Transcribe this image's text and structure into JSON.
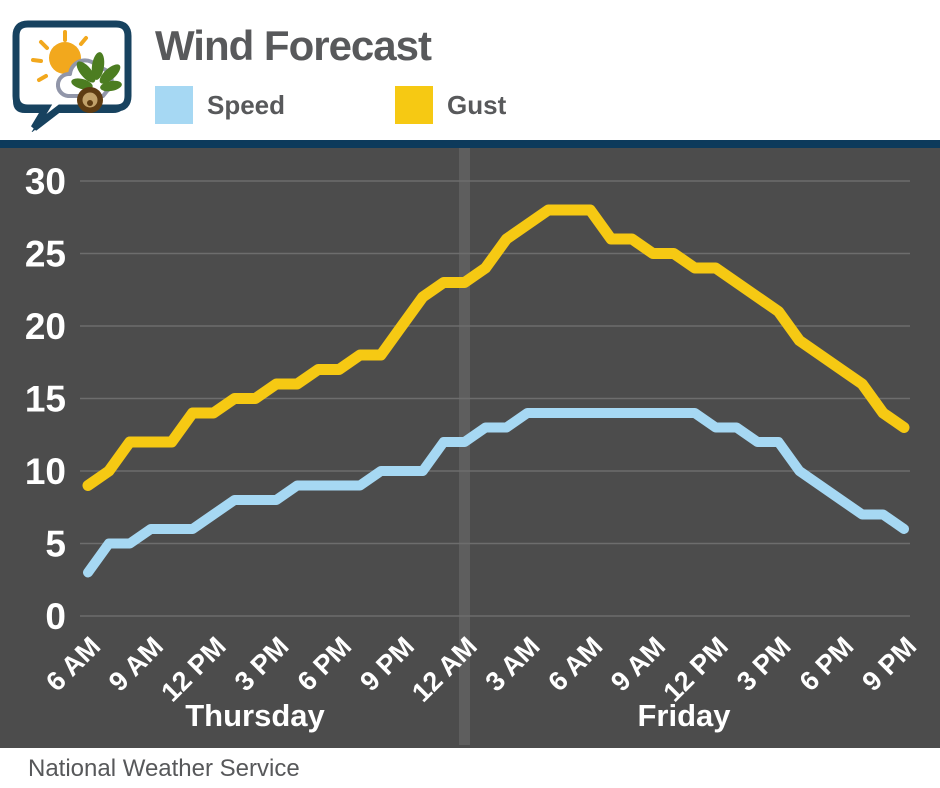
{
  "header": {
    "title": "Wind Forecast",
    "legend": [
      {
        "label": "Speed",
        "color": "#a6d8f3"
      },
      {
        "label": "Gust",
        "color": "#f6c913"
      }
    ]
  },
  "footer": {
    "source": "National Weather Service"
  },
  "colors": {
    "navy_bar": "#0d3a5b",
    "chart_background": "#4c4c4c",
    "gridline": "#6d6d6d",
    "midnight_divider": "#5e5e5e",
    "axis_text": "#ffffff",
    "title_text": "#58595b"
  },
  "chart_data": {
    "type": "line",
    "title": "Wind Forecast",
    "ylabel": "",
    "xlabel": "",
    "ylim": [
      0,
      30
    ],
    "y_ticks": [
      0,
      5,
      10,
      15,
      20,
      25,
      30
    ],
    "x_tick_labels": [
      "6 AM",
      "9 AM",
      "12 PM",
      "3 PM",
      "6 PM",
      "9 PM",
      "12 AM",
      "3 AM",
      "6 AM",
      "9 AM",
      "12 PM",
      "3 PM",
      "6 PM",
      "9 PM"
    ],
    "tick_interval_hours": 3,
    "x_interval_hours": 1,
    "day_labels": [
      "Thursday",
      "Friday"
    ],
    "grid": "horizontal",
    "legend_position": "top-left-header",
    "series": [
      {
        "name": "Speed",
        "color": "#a6d8f3",
        "values": [
          3,
          5,
          5,
          6,
          6,
          6,
          7,
          8,
          8,
          8,
          9,
          9,
          9,
          9,
          10,
          10,
          10,
          12,
          12,
          13,
          13,
          14,
          14,
          14,
          14,
          14,
          14,
          14,
          14,
          14,
          13,
          13,
          12,
          12,
          10,
          9,
          8,
          7,
          7,
          6
        ]
      },
      {
        "name": "Gust",
        "color": "#f6c913",
        "values": [
          9,
          10,
          12,
          12,
          12,
          14,
          14,
          15,
          15,
          16,
          16,
          17,
          17,
          18,
          18,
          20,
          22,
          23,
          23,
          24,
          26,
          27,
          28,
          28,
          28,
          26,
          26,
          25,
          25,
          24,
          24,
          23,
          22,
          21,
          19,
          18,
          17,
          16,
          14,
          13
        ]
      }
    ]
  }
}
